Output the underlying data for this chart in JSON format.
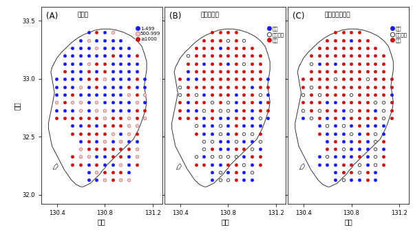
{
  "panels": [
    "(A)",
    "(B)",
    "(C)"
  ],
  "panel_titles": [
    "捕獲数",
    "被害の増減",
    "生息密度の増減"
  ],
  "xlabel": "経度",
  "ylabel": "緯度",
  "xlim": [
    130.27,
    131.28
  ],
  "ylim": [
    31.92,
    33.62
  ],
  "xticks": [
    130.4,
    130.8,
    131.2
  ],
  "yticks": [
    32.0,
    32.5,
    33.0,
    33.5
  ],
  "legend_A_labels": [
    "1-499",
    "500-999",
    "≥1000"
  ],
  "legend_BC_labels": [
    "減少",
    "変化なし",
    "増加"
  ],
  "blue": "#1a1aff",
  "red": "#cc1111",
  "pink_fc": "#ffcccc",
  "pink_ec": "#cc8888",
  "white_fc": "#ffffff",
  "gray_ec": "#444444",
  "outline_color": "#333333",
  "background": "#ffffff"
}
